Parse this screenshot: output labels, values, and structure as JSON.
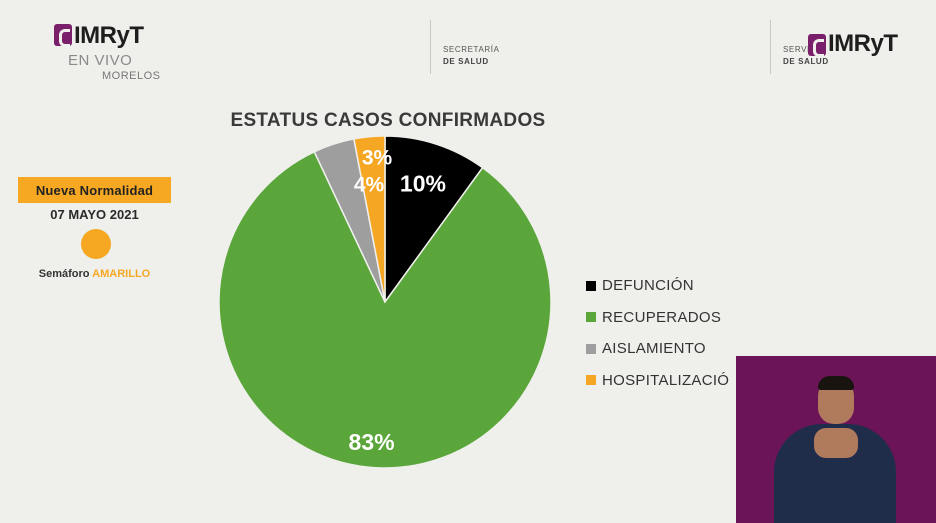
{
  "header": {
    "logo_left_text": "IMRyT",
    "logo_left_sub": "EN VIVO",
    "logo_left_sub2": "MORELOS",
    "secretaria_line1": "SECRETARÍA",
    "secretaria_line2": "DE SALUD",
    "servicios_line1": "SERVI",
    "servicios_line2": "DE SALUD",
    "logo_right_text": "IMRyT"
  },
  "status_panel": {
    "badge": "Nueva Normalidad",
    "date": "07 MAYO 2021",
    "semaforo_prefix": "Semáforo ",
    "semaforo_value": "AMARILLO",
    "semaforo_color": "#f7a823"
  },
  "chart_data": {
    "type": "pie",
    "title": "ESTATUS CASOS CONFIRMADOS",
    "legend_position": "right",
    "slices": [
      {
        "name": "DEFUNCIÓN",
        "value": 10,
        "label": "10%",
        "color": "#000000"
      },
      {
        "name": "RECUPERADOS",
        "value": 83,
        "label": "83%",
        "color": "#5aa63a"
      },
      {
        "name": "AISLAMIENTO",
        "value": 4,
        "label": "4%",
        "color": "#9e9e9e"
      },
      {
        "name": "HOSPITALIZACIÓN",
        "value": 3,
        "label": "3%",
        "color": "#f5a623"
      }
    ],
    "legend_display": [
      "DEFUNCIÓN",
      "RECUPERADOS",
      "AISLAMIENTO",
      "HOSPITALIZACIÓ"
    ]
  },
  "interpreter": {
    "background": "#6b1558"
  }
}
